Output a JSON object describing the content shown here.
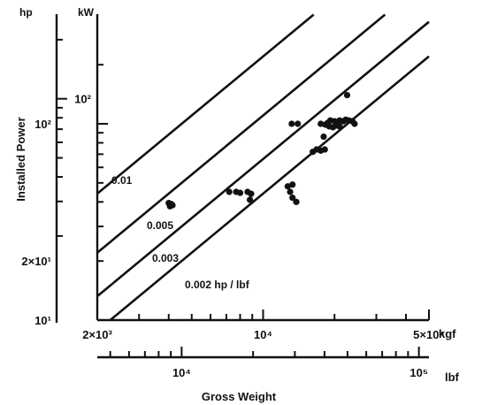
{
  "chart_data": {
    "type": "scatter",
    "title": "",
    "xlabel": "Gross Weight",
    "ylabel": "Installed Power",
    "log_scale": true,
    "grid": false,
    "x_axis_primary": {
      "unit": "kgf",
      "range": [
        2000,
        50000
      ],
      "tick_labels": [
        {
          "value": 2000,
          "text": "2×10³"
        },
        {
          "value": 10000,
          "text": "10⁴"
        },
        {
          "value": 50000,
          "text": "5×10⁴"
        }
      ]
    },
    "x_axis_secondary": {
      "unit": "lbf",
      "tick_labels": [
        {
          "value": 10000,
          "text": "10⁴"
        },
        {
          "value": 100000,
          "text": "10⁵"
        }
      ]
    },
    "y_axis_left": {
      "unit": "hp",
      "tick_labels": [
        {
          "value": 10,
          "text": "10¹"
        },
        {
          "value": 20,
          "text": "2×10¹"
        },
        {
          "value": 100,
          "text": "10²"
        }
      ]
    },
    "y_axis_right": {
      "unit": "kW",
      "tick_labels": [
        {
          "value": 100,
          "text": "10²"
        }
      ]
    },
    "reference_lines": [
      {
        "ratio": 0.01,
        "label": "0.01"
      },
      {
        "ratio": 0.005,
        "label": "0.005"
      },
      {
        "ratio": 0.003,
        "label": "0.003"
      },
      {
        "ratio": 0.002,
        "label": "0.002  hp / lbf"
      }
    ],
    "points": [
      {
        "x_kgf": 4050,
        "y_hp": 38
      },
      {
        "x_kgf": 4100,
        "y_hp": 39
      },
      {
        "x_kgf": 4000,
        "y_hp": 39.5
      },
      {
        "x_kgf": 4150,
        "y_hp": 38.5
      },
      {
        "x_kgf": 7200,
        "y_hp": 45
      },
      {
        "x_kgf": 7700,
        "y_hp": 45
      },
      {
        "x_kgf": 8000,
        "y_hp": 44.5
      },
      {
        "x_kgf": 8600,
        "y_hp": 45
      },
      {
        "x_kgf": 8900,
        "y_hp": 44
      },
      {
        "x_kgf": 8800,
        "y_hp": 41
      },
      {
        "x_kgf": 12700,
        "y_hp": 48
      },
      {
        "x_kgf": 13300,
        "y_hp": 49
      },
      {
        "x_kgf": 13000,
        "y_hp": 45
      },
      {
        "x_kgf": 13300,
        "y_hp": 42
      },
      {
        "x_kgf": 13800,
        "y_hp": 40
      },
      {
        "x_kgf": 13200,
        "y_hp": 100
      },
      {
        "x_kgf": 14000,
        "y_hp": 100
      },
      {
        "x_kgf": 16200,
        "y_hp": 72
      },
      {
        "x_kgf": 16800,
        "y_hp": 74
      },
      {
        "x_kgf": 17500,
        "y_hp": 73
      },
      {
        "x_kgf": 18200,
        "y_hp": 74
      },
      {
        "x_kgf": 18000,
        "y_hp": 86
      },
      {
        "x_kgf": 17500,
        "y_hp": 100
      },
      {
        "x_kgf": 18300,
        "y_hp": 99
      },
      {
        "x_kgf": 19000,
        "y_hp": 97
      },
      {
        "x_kgf": 19700,
        "y_hp": 96
      },
      {
        "x_kgf": 20500,
        "y_hp": 98
      },
      {
        "x_kgf": 21000,
        "y_hp": 104
      },
      {
        "x_kgf": 21800,
        "y_hp": 103
      },
      {
        "x_kgf": 22300,
        "y_hp": 105
      },
      {
        "x_kgf": 23000,
        "y_hp": 104
      },
      {
        "x_kgf": 23800,
        "y_hp": 103
      },
      {
        "x_kgf": 20000,
        "y_hp": 103
      },
      {
        "x_kgf": 19200,
        "y_hp": 104
      },
      {
        "x_kgf": 18700,
        "y_hp": 101
      },
      {
        "x_kgf": 24300,
        "y_hp": 100
      },
      {
        "x_kgf": 21000,
        "y_hp": 97
      },
      {
        "x_kgf": 22600,
        "y_hp": 140
      }
    ]
  }
}
